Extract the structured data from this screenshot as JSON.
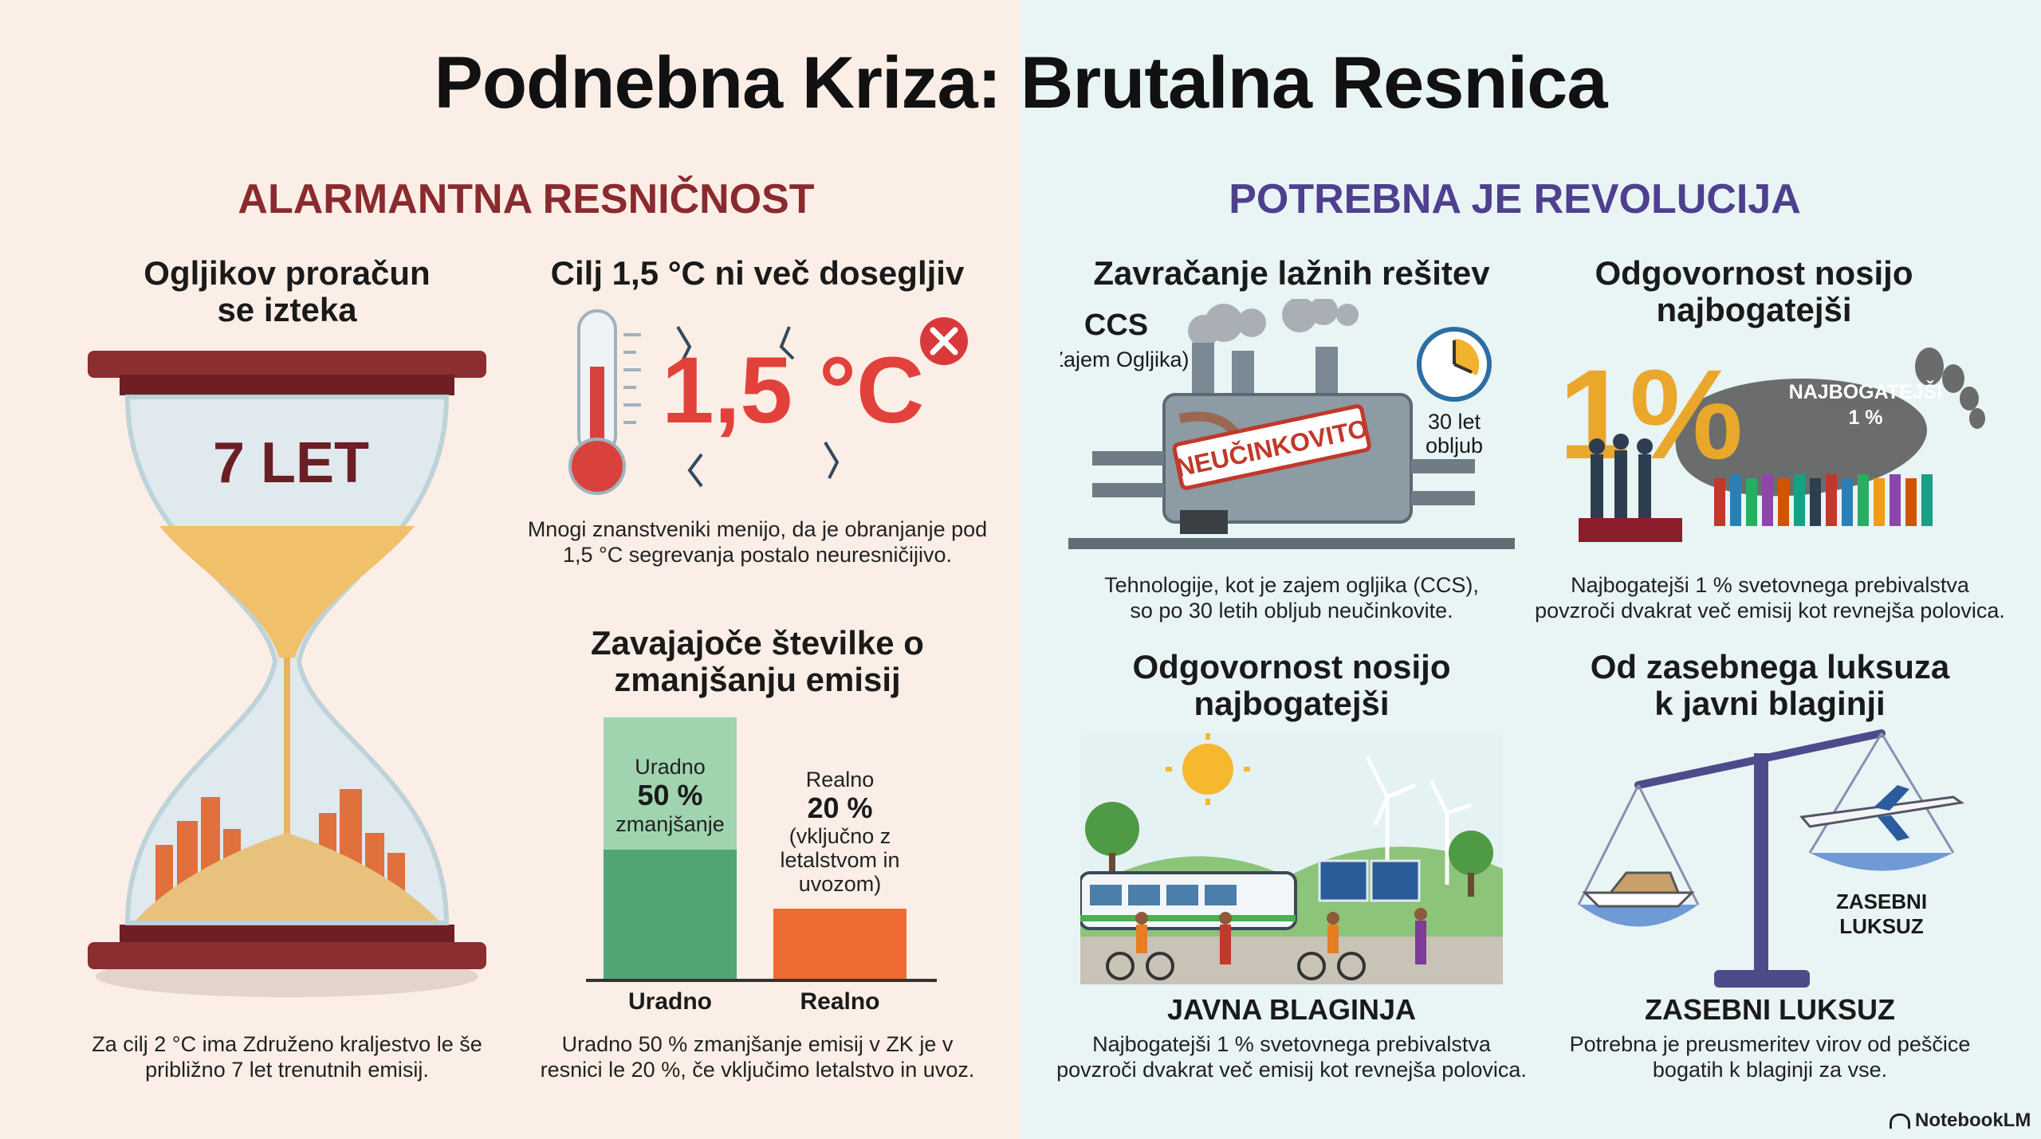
{
  "title": "Podnebna Kriza: Brutalna Resnica",
  "left": {
    "heading": "ALARMANTNA RESNIČNOST",
    "budget": {
      "title_line1": "Ogljikov proračun",
      "title_line2": "se izteka",
      "hourglass_label": "7 LET",
      "caption_line1": "Za cilj 2 °C ima Združeno kraljestvo le še",
      "caption_line2": "približno 7 let trenutnih emisij."
    },
    "target": {
      "title": "Cilj 1,5 °C ni več dosegljiv",
      "big_value": "1,5 °C",
      "caption_line1": "Mnogi znanstveniki menijo, da je obranjanje pod",
      "caption_line2": "1,5 °C segrevanja postalo neuresničijivo."
    },
    "emissions": {
      "title_line1": "Zavajajoče številke o",
      "title_line2": "zmanjšanju emisij",
      "bar1_label": "Uradno",
      "bar1_value": "50 %",
      "bar1_sub": "zmanjšanje",
      "bar2_label": "Realno",
      "bar2_value": "20 %",
      "bar2_sub1": "(vključno z",
      "bar2_sub2": "letalstvom in",
      "bar2_sub3": "uvozom)",
      "axis_left": "Uradno",
      "axis_right": "Realno",
      "caption_line1": "Uradno 50 % zmanjšanje emisij v ZK je v",
      "caption_line2": "resnici le 20 %, če vključimo letalstvo in uvoz.",
      "colors": {
        "official": "#4fa574",
        "official_light": "#9fd4ae",
        "real": "#ee6b34"
      }
    }
  },
  "right": {
    "heading": "POTREBNA JE REVOLUCIJA",
    "ccs": {
      "title": "Zavračanje lažnih rešitev",
      "label": "CCS",
      "label_sub": "(Zajem Ogljika)",
      "stamp": "NEUČINKOVITO",
      "clock_line1": "30 let",
      "clock_line2": "obljub",
      "caption_line1": "Tehnologije, kot je zajem ogljika (CCS),",
      "caption_line2": "so po 30 letih obljub neučinkovite."
    },
    "richest": {
      "title_line1": "Odgovornost nosijo",
      "title_line2": "najbogatejši",
      "big": "1%",
      "foot_line1": "NAJBOGATEJŠI",
      "foot_line2": "1 %",
      "caption_line1": "Najbogatejši 1 % svetovnega prebivalstva",
      "caption_line2": "povzroči dvakrat več emisij kot revnejša polovica."
    },
    "public": {
      "title_line1": "Odgovornost nosijo",
      "title_line2": "najbogatejši",
      "label": "JAVNA BLAGINJA",
      "caption_line1": "Najbogatejši 1 % svetovnega prebivalstva",
      "caption_line2": "povzroči dvakrat več emisij kot revnejša polovica."
    },
    "luxury": {
      "title_line1": "Od zasebnega luksuza",
      "title_line2": "k javni blaginji",
      "pan_line1": "ZASEBNI",
      "pan_line2": "LUKSUZ",
      "label": "ZASEBNI LUKSUZ",
      "caption_line1": "Potrebna je preusmeritev virov od peščice",
      "caption_line2": "bogatih k blaginji za vse."
    }
  },
  "brand": "NotebookLM"
}
